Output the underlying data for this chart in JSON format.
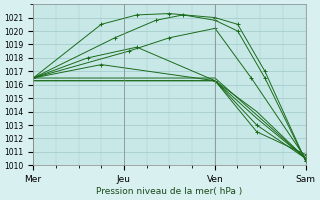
{
  "title": "Pression niveau de la mer( hPa )",
  "bg_color": "#d8f0f0",
  "plot_bg_color": "#c8e8e8",
  "grid_color": "#a0c8c8",
  "line_color": "#1a6b1a",
  "ylim": [
    1010,
    1022
  ],
  "yticks": [
    1010,
    1011,
    1012,
    1013,
    1014,
    1015,
    1016,
    1017,
    1018,
    1019,
    1020,
    1021
  ],
  "xtick_labels": [
    "Mer",
    "Jeu",
    "Ven",
    "Sam"
  ],
  "xtick_positions": [
    0,
    0.333,
    0.667,
    1.0
  ],
  "series": [
    {
      "x": [
        0,
        0.25,
        0.38,
        0.5,
        0.667,
        0.75,
        0.85,
        1.0
      ],
      "y": [
        1016.5,
        1020.5,
        1021.2,
        1021.3,
        1021.0,
        1020.5,
        1017.0,
        1010.3
      ]
    },
    {
      "x": [
        0,
        0.3,
        0.45,
        0.55,
        0.667,
        0.75,
        0.85,
        1.0
      ],
      "y": [
        1016.5,
        1019.5,
        1020.8,
        1021.2,
        1020.8,
        1020.0,
        1016.5,
        1010.3
      ]
    },
    {
      "x": [
        0,
        0.35,
        0.5,
        0.667,
        0.8,
        1.0
      ],
      "y": [
        1016.5,
        1018.5,
        1019.5,
        1020.2,
        1016.5,
        1010.5
      ]
    },
    {
      "x": [
        0,
        0.667,
        1.0
      ],
      "y": [
        1016.5,
        1016.5,
        1010.5
      ]
    },
    {
      "x": [
        0,
        0.667,
        0.82,
        1.0
      ],
      "y": [
        1016.3,
        1016.3,
        1014.0,
        1010.5
      ]
    },
    {
      "x": [
        0,
        0.667,
        0.82,
        1.0
      ],
      "y": [
        1016.3,
        1016.3,
        1013.5,
        1010.5
      ]
    },
    {
      "x": [
        0,
        0.25,
        0.667,
        0.82,
        1.0
      ],
      "y": [
        1016.5,
        1017.5,
        1016.3,
        1013.0,
        1010.5
      ]
    },
    {
      "x": [
        0,
        0.2,
        0.38,
        0.667,
        0.82,
        1.0
      ],
      "y": [
        1016.5,
        1018.0,
        1018.8,
        1016.3,
        1012.5,
        1010.8
      ]
    }
  ]
}
